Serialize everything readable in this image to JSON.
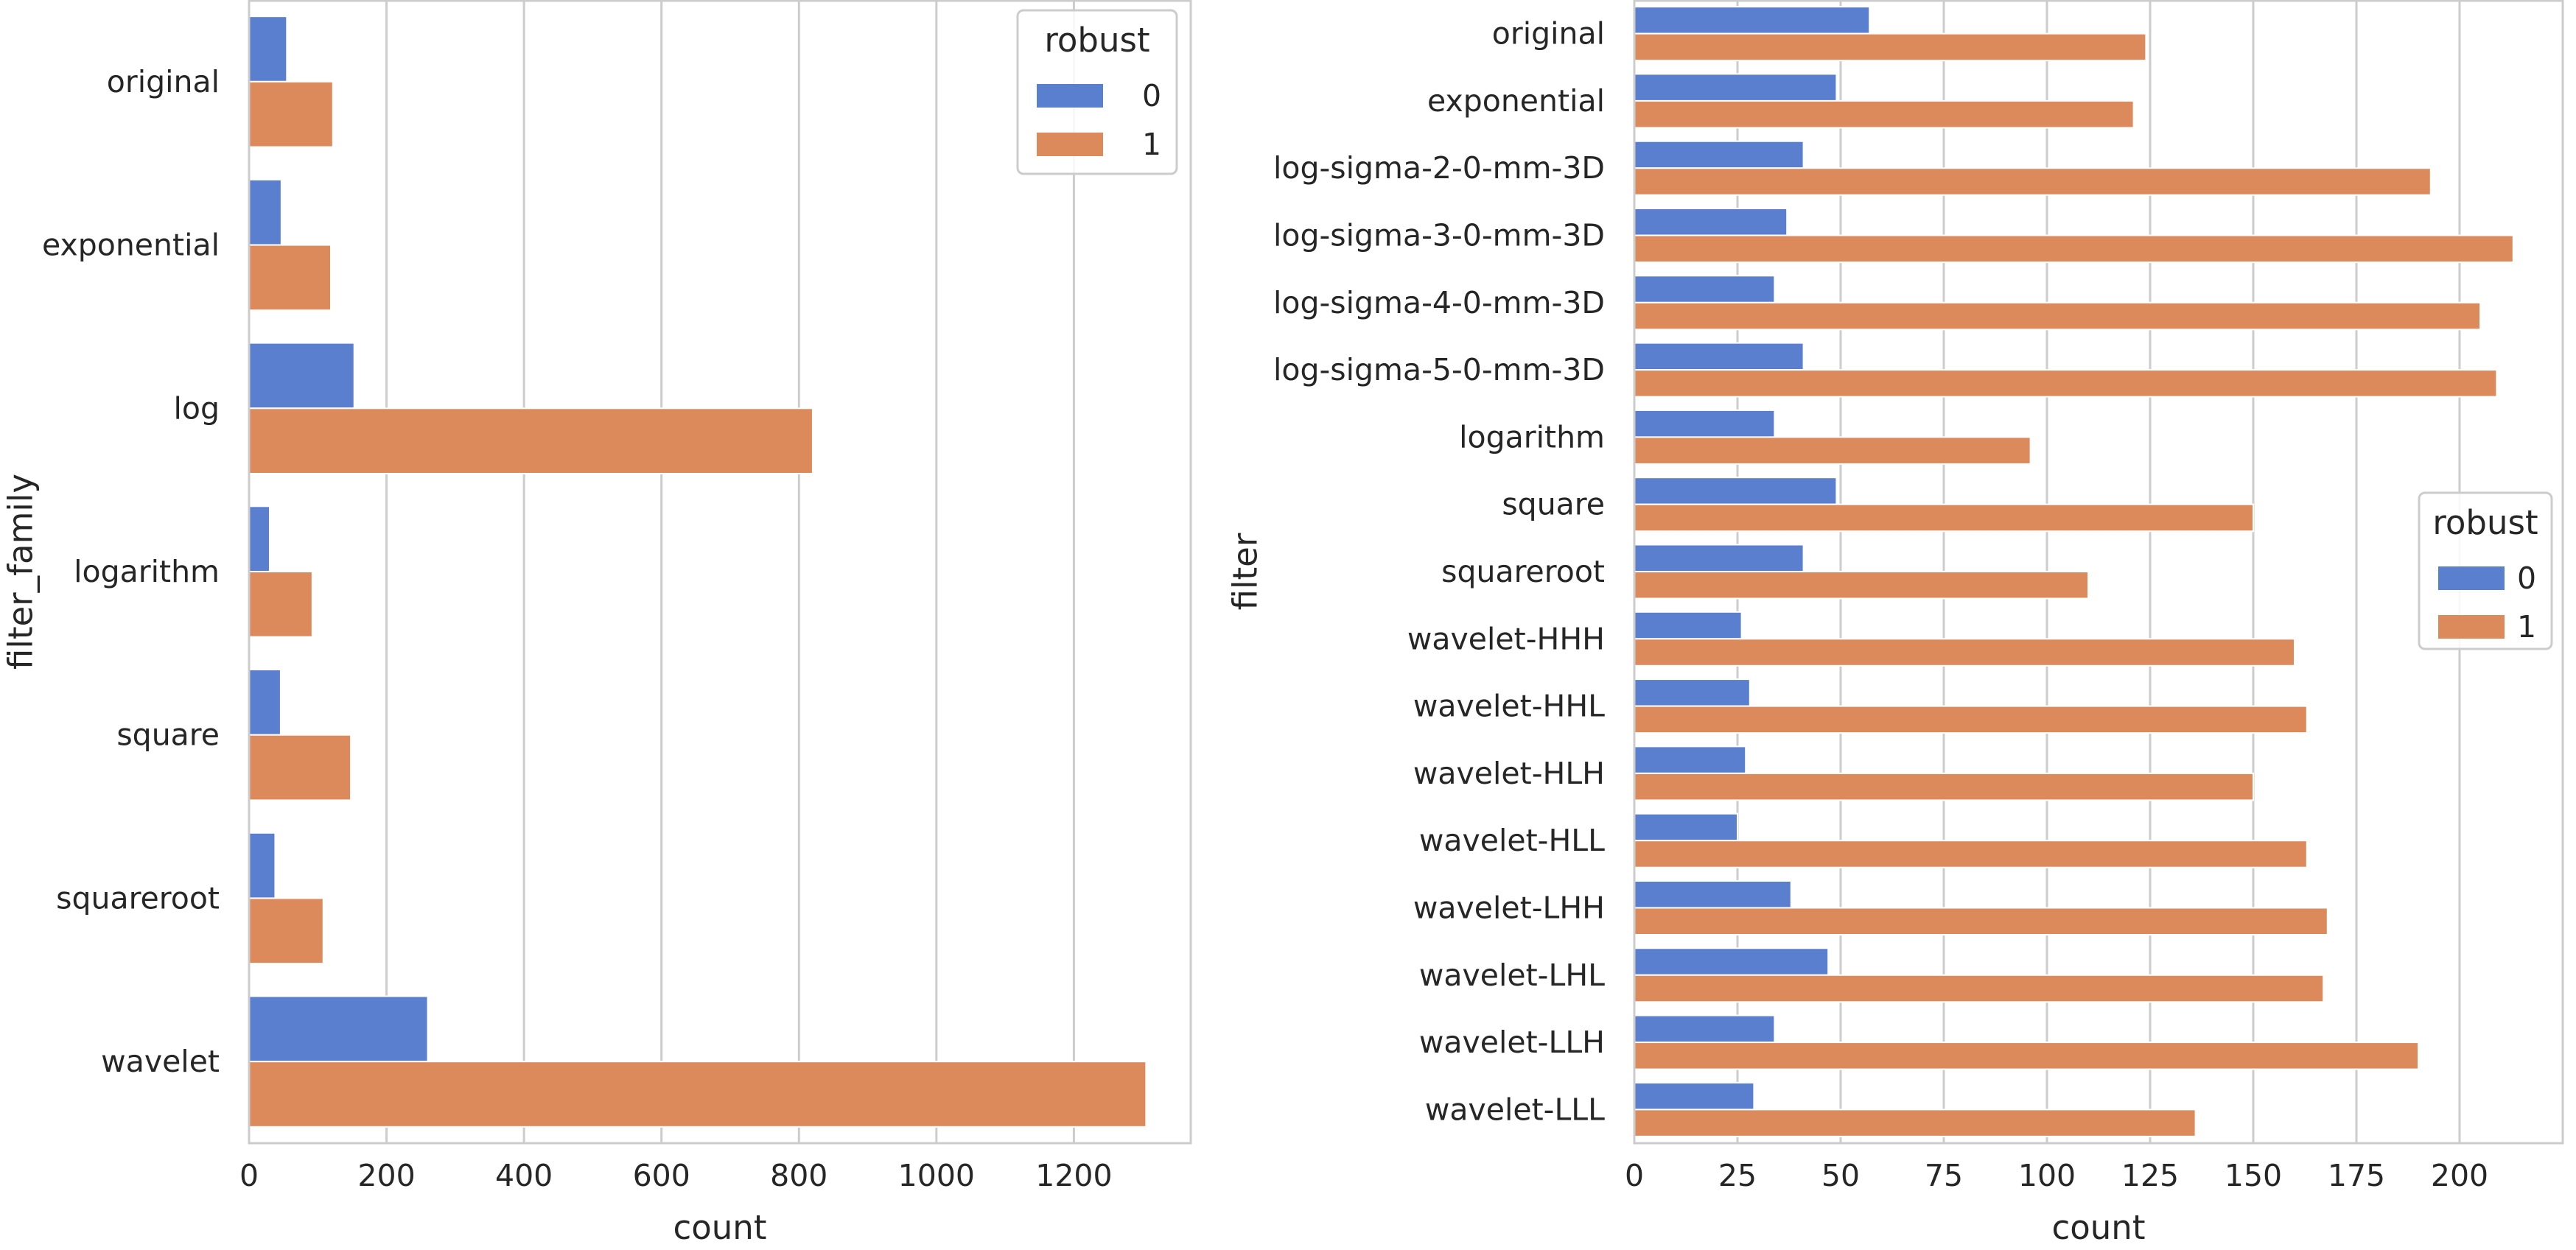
{
  "chart_data": [
    {
      "type": "bar",
      "orientation": "horizontal",
      "xlabel": "count",
      "ylabel": "filter_family",
      "xlim": [
        0,
        1370
      ],
      "xticks": [
        0,
        200,
        400,
        600,
        800,
        1000,
        1200
      ],
      "grid": true,
      "legend": {
        "title": "robust",
        "placement": "top-right"
      },
      "categories": [
        "original",
        "exponential",
        "log",
        "logarithm",
        "square",
        "squareroot",
        "wavelet"
      ],
      "series": [
        {
          "name": "0",
          "color": "#5b7fcf",
          "values": [
            55,
            47,
            153,
            30,
            46,
            38,
            260
          ]
        },
        {
          "name": "1",
          "color": "#dc8a5c",
          "values": [
            122,
            119,
            820,
            92,
            148,
            108,
            1305
          ]
        }
      ]
    },
    {
      "type": "bar",
      "orientation": "horizontal",
      "xlabel": "count",
      "ylabel": "filter",
      "xlim": [
        0,
        225
      ],
      "xticks": [
        0,
        25,
        50,
        75,
        100,
        125,
        150,
        175,
        200
      ],
      "grid": true,
      "legend": {
        "title": "robust",
        "placement": "center-right"
      },
      "categories": [
        "original",
        "exponential",
        "log-sigma-2-0-mm-3D",
        "log-sigma-3-0-mm-3D",
        "log-sigma-4-0-mm-3D",
        "log-sigma-5-0-mm-3D",
        "logarithm",
        "square",
        "squareroot",
        "wavelet-HHH",
        "wavelet-HHL",
        "wavelet-HLH",
        "wavelet-HLL",
        "wavelet-LHH",
        "wavelet-LHL",
        "wavelet-LLH",
        "wavelet-LLL"
      ],
      "series": [
        {
          "name": "0",
          "color": "#5b7fcf",
          "values": [
            57,
            49,
            41,
            37,
            34,
            41,
            34,
            49,
            41,
            26,
            28,
            27,
            25,
            38,
            47,
            34,
            29
          ]
        },
        {
          "name": "1",
          "color": "#dc8a5c",
          "values": [
            124,
            121,
            193,
            213,
            205,
            209,
            96,
            150,
            110,
            160,
            163,
            150,
            163,
            168,
            167,
            190,
            136
          ]
        }
      ]
    }
  ]
}
